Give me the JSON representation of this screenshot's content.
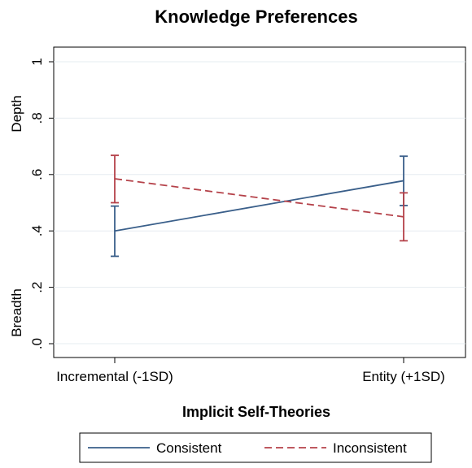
{
  "chart_data": {
    "type": "line",
    "title": "Knowledge Preferences",
    "xlabel": "Implicit Self-Theories",
    "ylabel_top": "Depth",
    "ylabel_bottom": "Breadth",
    "categories": [
      "Incremental (-1SD)",
      "Entity (+1SD)"
    ],
    "ylim": [
      0,
      1
    ],
    "yticks": [
      0,
      0.2,
      0.4,
      0.6,
      0.8,
      1
    ],
    "ytick_labels": [
      ".0",
      ".2",
      ".4",
      ".6",
      ".8",
      "1"
    ],
    "grid": true,
    "legend_position": "bottom",
    "series": [
      {
        "name": "Consistent",
        "color": "#3a5f8a",
        "dash": "solid",
        "values": [
          0.4,
          0.578
        ],
        "ci_low": [
          0.31,
          0.49
        ],
        "ci_high": [
          0.488,
          0.665
        ]
      },
      {
        "name": "Inconsistent",
        "color": "#b5424a",
        "dash": "dashed",
        "values": [
          0.585,
          0.45
        ],
        "ci_low": [
          0.5,
          0.365
        ],
        "ci_high": [
          0.668,
          0.535
        ]
      }
    ]
  }
}
